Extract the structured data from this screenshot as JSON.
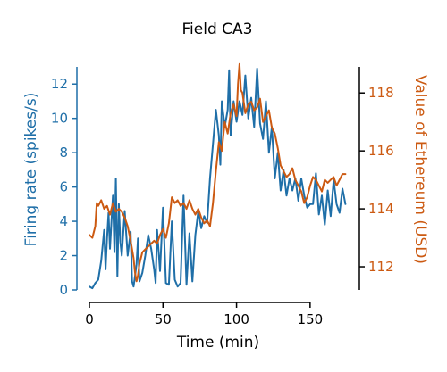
{
  "chart_data": {
    "type": "line",
    "title": "Field CA3",
    "xlabel": "Time (min)",
    "ylabel_left": "Firing rate (spikes/s)",
    "ylabel_right": "Value of Ethereum (USD)",
    "xlim": [
      0,
      175
    ],
    "ylim_left": [
      0,
      13
    ],
    "ylim_right": [
      111.2,
      118.9
    ],
    "x_ticks": [
      0,
      50,
      100,
      150
    ],
    "y_left_ticks": [
      0,
      2,
      4,
      6,
      8,
      10,
      12
    ],
    "y_right_ticks": [
      112,
      114,
      116,
      118
    ],
    "grid": false,
    "colors": {
      "left": "#1f6fa8",
      "right": "#cc5a12"
    },
    "series": [
      {
        "axis": "left",
        "x": [
          0,
          2,
          4,
          6,
          8,
          10,
          11,
          12,
          13,
          14,
          16,
          17,
          18,
          19,
          20,
          21,
          22,
          24,
          26,
          28,
          29,
          30,
          31,
          32,
          33,
          34,
          36,
          38,
          40,
          42,
          44,
          45,
          46,
          48,
          50,
          52,
          54,
          56,
          58,
          60,
          62,
          64,
          66,
          68,
          70,
          72,
          74,
          76,
          78,
          80,
          82,
          84,
          86,
          88,
          89,
          90,
          92,
          94,
          95,
          96,
          98,
          100,
          102,
          104,
          106,
          108,
          110,
          112,
          114,
          116,
          118,
          120,
          122,
          124,
          126,
          128,
          130,
          132,
          134,
          136,
          138,
          140,
          142,
          144,
          146,
          148,
          150,
          152,
          154,
          156,
          158,
          160,
          162,
          164,
          166,
          168,
          170,
          172,
          174
        ],
        "values": [
          0.2,
          0.1,
          0.4,
          0.6,
          1.7,
          3.5,
          1.2,
          3.0,
          4.5,
          2.4,
          5.5,
          2.2,
          6.5,
          0.8,
          5.0,
          2.8,
          2.0,
          4.6,
          2.0,
          3.4,
          0.5,
          0.2,
          0.8,
          1.5,
          3.0,
          0.5,
          1.0,
          2.0,
          3.2,
          2.4,
          1.2,
          0.4,
          3.5,
          1.1,
          4.8,
          0.4,
          0.3,
          4.0,
          0.6,
          0.2,
          0.4,
          5.5,
          0.3,
          3.3,
          0.5,
          3.2,
          4.6,
          3.6,
          4.3,
          3.9,
          6.5,
          8.5,
          10.5,
          9.0,
          7.3,
          11.0,
          9.5,
          10.5,
          12.8,
          9.0,
          11.0,
          9.8,
          11.0,
          10.2,
          12.5,
          10.0,
          11.2,
          9.5,
          12.9,
          9.7,
          8.8,
          11.0,
          8.0,
          9.5,
          6.5,
          8.0,
          5.8,
          7.0,
          5.5,
          6.5,
          5.8,
          6.5,
          5.2,
          6.5,
          5.5,
          4.8,
          5.0,
          5.0,
          6.8,
          4.4,
          5.5,
          3.8,
          5.8,
          4.3,
          6.4,
          5.0,
          4.5,
          5.9,
          5.0
        ]
      },
      {
        "axis": "right",
        "x": [
          0,
          2,
          4,
          5,
          6,
          8,
          10,
          12,
          14,
          16,
          18,
          20,
          22,
          24,
          26,
          28,
          30,
          31,
          32,
          33,
          34,
          36,
          38,
          40,
          42,
          44,
          46,
          48,
          50,
          52,
          54,
          56,
          58,
          60,
          62,
          64,
          66,
          68,
          70,
          72,
          74,
          76,
          78,
          80,
          82,
          84,
          86,
          88,
          90,
          92,
          94,
          96,
          98,
          100,
          101,
          102,
          103,
          104,
          106,
          108,
          110,
          112,
          114,
          116,
          118,
          120,
          122,
          124,
          126,
          128,
          130,
          132,
          134,
          136,
          138,
          140,
          142,
          144,
          146,
          148,
          150,
          152,
          154,
          156,
          158,
          160,
          162,
          164,
          166,
          168,
          170,
          172,
          174
        ],
        "values": [
          113.1,
          113.0,
          113.4,
          114.2,
          114.1,
          114.3,
          114.0,
          114.1,
          113.8,
          114.2,
          113.9,
          114.0,
          113.9,
          113.7,
          113.4,
          112.9,
          112.3,
          111.8,
          111.5,
          111.7,
          112.1,
          112.5,
          112.6,
          112.7,
          112.8,
          112.9,
          112.8,
          113.1,
          113.3,
          113.0,
          113.5,
          114.4,
          114.2,
          114.3,
          114.1,
          114.2,
          114.0,
          114.3,
          114.0,
          113.8,
          114.0,
          113.7,
          113.5,
          113.6,
          113.4,
          114.2,
          115.3,
          116.3,
          116.0,
          117.0,
          116.6,
          117.3,
          117.6,
          117.2,
          118.3,
          119.0,
          118.1,
          118.0,
          117.3,
          117.6,
          117.7,
          117.4,
          117.5,
          117.8,
          117.0,
          117.2,
          117.4,
          116.8,
          116.6,
          116.1,
          115.5,
          115.3,
          115.1,
          115.2,
          115.4,
          115.0,
          114.8,
          114.6,
          114.2,
          114.4,
          114.8,
          115.1,
          115.0,
          114.8,
          114.6,
          115.0,
          114.9,
          115.0,
          115.1,
          114.8,
          115.0,
          115.2,
          115.2
        ]
      }
    ]
  }
}
